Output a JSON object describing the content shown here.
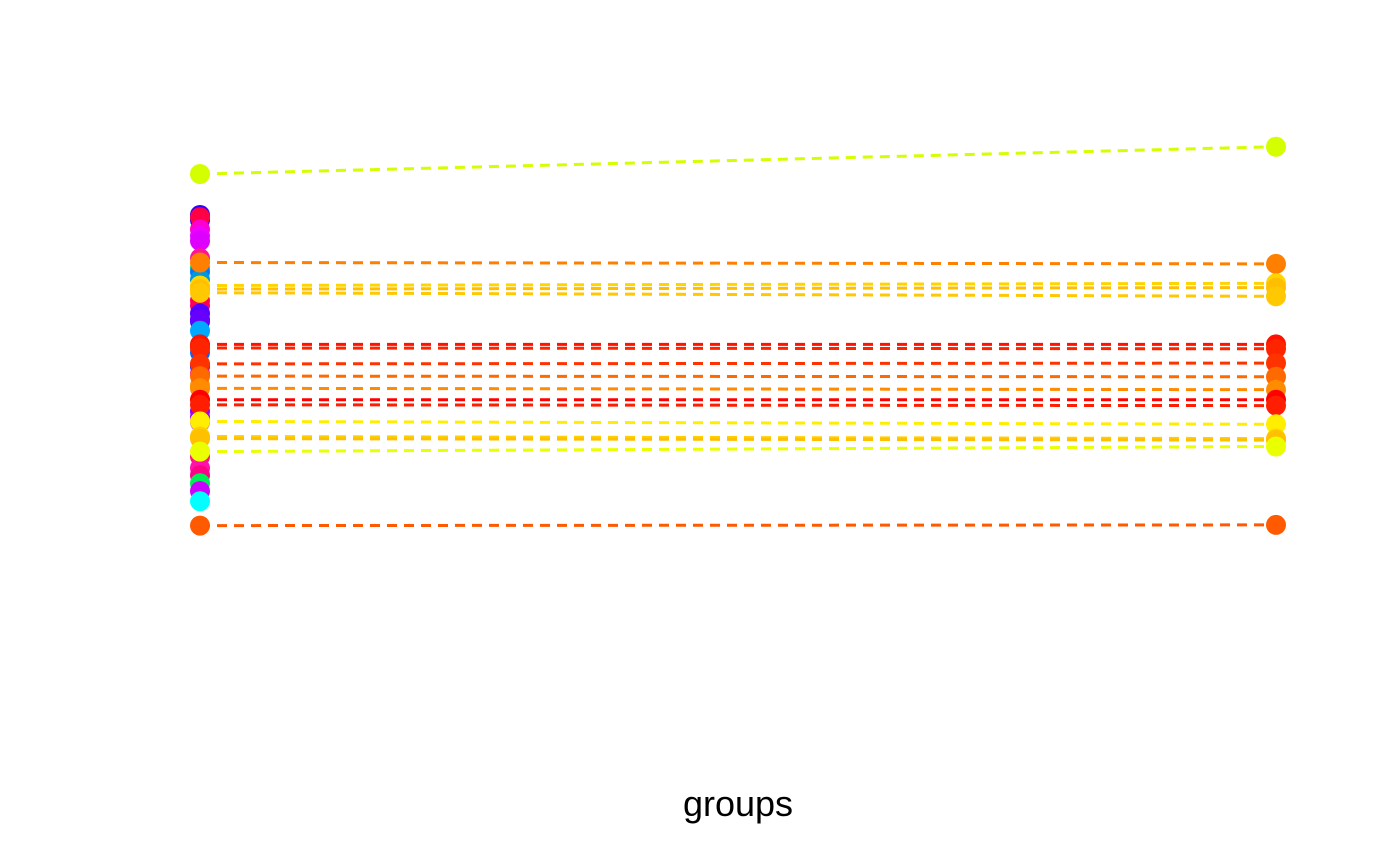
{
  "chart_data": {
    "type": "scatter",
    "xlabel": "groups",
    "categories": [
      "",
      ""
    ],
    "grid": false,
    "legend": "none",
    "ylim": [
      0,
      100
    ],
    "paired": [
      {
        "y1": 84.0,
        "y2": 87.8,
        "color": "#d4ff00"
      },
      {
        "y1": 71.7,
        "y2": 71.5,
        "color": "#ff8000"
      },
      {
        "y1": 68.5,
        "y2": 68.8,
        "color": "#ffd500"
      },
      {
        "y1": 68.0,
        "y2": 68.2,
        "color": "#ffbf00"
      },
      {
        "y1": 67.5,
        "y2": 67.0,
        "color": "#ffc800"
      },
      {
        "y1": 60.3,
        "y2": 60.3,
        "color": "#ff1200"
      },
      {
        "y1": 59.8,
        "y2": 59.7,
        "color": "#ff2400"
      },
      {
        "y1": 57.6,
        "y2": 57.7,
        "color": "#ff3300"
      },
      {
        "y1": 55.9,
        "y2": 55.8,
        "color": "#ff6a00"
      },
      {
        "y1": 54.2,
        "y2": 54.0,
        "color": "#ff8c00"
      },
      {
        "y1": 52.6,
        "y2": 52.6,
        "color": "#ff0000"
      },
      {
        "y1": 51.9,
        "y2": 51.8,
        "color": "#ff1e00"
      },
      {
        "y1": 49.6,
        "y2": 49.2,
        "color": "#ffee00"
      },
      {
        "y1": 47.5,
        "y2": 47.2,
        "color": "#ffd000"
      },
      {
        "y1": 47.2,
        "y2": 47.0,
        "color": "#ffc000"
      },
      {
        "y1": 45.4,
        "y2": 46.1,
        "color": "#eaff00"
      },
      {
        "y1": 35.1,
        "y2": 35.2,
        "color": "#ff5a00"
      }
    ],
    "group1_only": [
      {
        "y": 78.3,
        "color": "#3300ff"
      },
      {
        "y": 77.6,
        "color": "#1a00ff"
      },
      {
        "y": 78.0,
        "color": "#ff0044"
      },
      {
        "y": 76.3,
        "color": "#ff00cc"
      },
      {
        "y": 75.4,
        "color": "#ee00ff"
      },
      {
        "y": 74.7,
        "color": "#dd00ff"
      },
      {
        "y": 72.3,
        "color": "#ff1493"
      },
      {
        "y": 71.0,
        "color": "#00dd66"
      },
      {
        "y": 70.4,
        "color": "#0077ff"
      },
      {
        "y": 69.3,
        "color": "#0099dd"
      },
      {
        "y": 65.7,
        "color": "#ff0066"
      },
      {
        "y": 66.4,
        "color": "#ff0055"
      },
      {
        "y": 64.6,
        "color": "#5500ff"
      },
      {
        "y": 63.5,
        "color": "#2200ff"
      },
      {
        "y": 63.8,
        "color": "#6600ff"
      },
      {
        "y": 62.2,
        "color": "#00aaff"
      },
      {
        "y": 60.0,
        "color": "#ff1a4d"
      },
      {
        "y": 59.2,
        "color": "#0066ff"
      },
      {
        "y": 57.3,
        "color": "#0000ff"
      },
      {
        "y": 56.2,
        "color": "#ff00aa"
      },
      {
        "y": 54.6,
        "color": "#ff9900"
      },
      {
        "y": 51.0,
        "color": "#8800ff"
      },
      {
        "y": 50.2,
        "color": "#9900ff"
      },
      {
        "y": 49.5,
        "color": "#aa00ff"
      },
      {
        "y": 44.7,
        "color": "#ff1177"
      },
      {
        "y": 43.1,
        "color": "#ff11aa"
      },
      {
        "y": 42.1,
        "color": "#ff0088"
      },
      {
        "y": 41.0,
        "color": "#00ee55"
      },
      {
        "y": 39.9,
        "color": "#cc00ff"
      },
      {
        "y": 38.5,
        "color": "#00ffff"
      }
    ]
  }
}
